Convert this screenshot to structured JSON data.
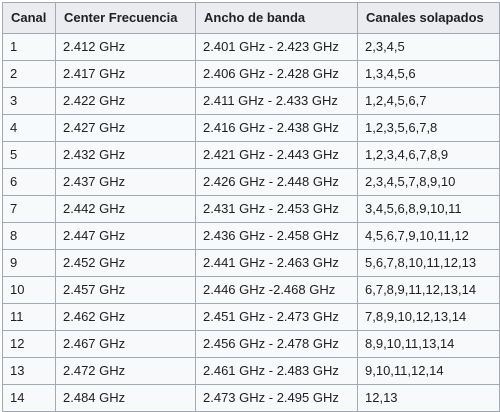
{
  "table": {
    "headers": [
      "Canal",
      "Center Frecuencia",
      "Ancho de banda",
      "Canales solapados"
    ],
    "rows": [
      [
        "1",
        "2.412 GHz",
        "2.401 GHz - 2.423 GHz",
        "2,3,4,5"
      ],
      [
        "2",
        "2.417 GHz",
        "2.406 GHz - 2.428 GHz",
        "1,3,4,5,6"
      ],
      [
        "3",
        "2.422 GHz",
        "2.411 GHz - 2.433 GHz",
        "1,2,4,5,6,7"
      ],
      [
        "4",
        "2.427 GHz",
        "2.416 GHz - 2.438 GHz",
        "1,2,3,5,6,7,8"
      ],
      [
        "5",
        "2.432 GHz",
        "2.421 GHz - 2.443 GHz",
        "1,2,3,4,6,7,8,9"
      ],
      [
        "6",
        "2.437 GHz",
        "2.426 GHz - 2.448 GHz",
        "2,3,4,5,7,8,9,10"
      ],
      [
        "7",
        "2.442 GHz",
        "2.431 GHz - 2.453 GHz",
        "3,4,5,6,8,9,10,11"
      ],
      [
        "8",
        "2.447 GHz",
        "2.436 GHz - 2.458 GHz",
        "4,5,6,7,9,10,11,12"
      ],
      [
        "9",
        "2.452 GHz",
        "2.441 GHz - 2.463 GHz",
        "5,6,7,8,10,11,12,13"
      ],
      [
        "10",
        "2.457 GHz",
        "2.446 GHz -2.468 GHz",
        "6,7,8,9,11,12,13,14"
      ],
      [
        "11",
        "2.462 GHz",
        "2.451 GHz - 2.473 GHz",
        "7,8,9,10,12,13,14"
      ],
      [
        "12",
        "2.467 GHz",
        "2.456 GHz - 2.478 GHz",
        "8,9,10,11,13,14"
      ],
      [
        "13",
        "2.472 GHz",
        "2.461 GHz - 2.483 GHz",
        "9,10,11,12,14"
      ],
      [
        "14",
        "2.484 GHz",
        "2.473 GHz - 2.495 GHz",
        "12,13"
      ]
    ]
  }
}
